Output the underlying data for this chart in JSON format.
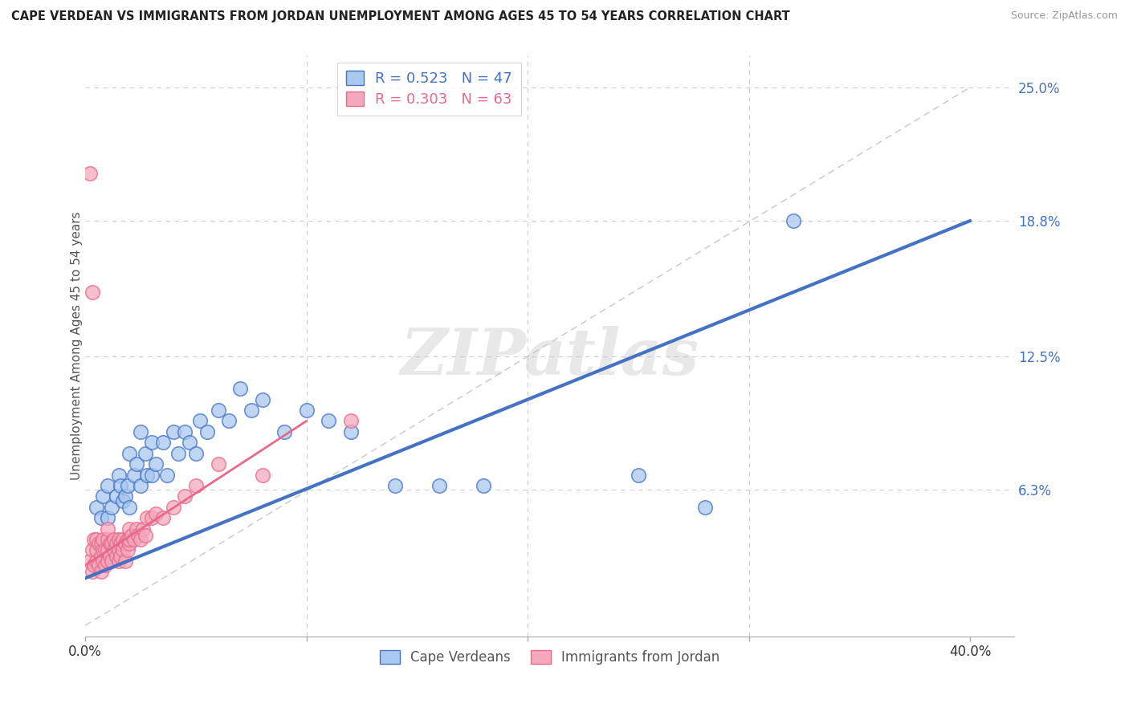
{
  "title": "CAPE VERDEAN VS IMMIGRANTS FROM JORDAN UNEMPLOYMENT AMONG AGES 45 TO 54 YEARS CORRELATION CHART",
  "source": "Source: ZipAtlas.com",
  "ylabel": "Unemployment Among Ages 45 to 54 years",
  "xlim": [
    0.0,
    0.42
  ],
  "ylim": [
    -0.005,
    0.265
  ],
  "ytick_labels_right": [
    "25.0%",
    "18.8%",
    "12.5%",
    "6.3%"
  ],
  "ytick_values_right": [
    0.25,
    0.188,
    0.125,
    0.063
  ],
  "blue_R": "0.523",
  "blue_N": "47",
  "pink_R": "0.303",
  "pink_N": "63",
  "legend_label_blue": "Cape Verdeans",
  "legend_label_pink": "Immigrants from Jordan",
  "watermark": "ZIPatlas",
  "blue_scatter_x": [
    0.005,
    0.007,
    0.008,
    0.01,
    0.01,
    0.012,
    0.014,
    0.015,
    0.016,
    0.017,
    0.018,
    0.019,
    0.02,
    0.02,
    0.022,
    0.023,
    0.025,
    0.025,
    0.027,
    0.028,
    0.03,
    0.03,
    0.032,
    0.035,
    0.037,
    0.04,
    0.042,
    0.045,
    0.047,
    0.05,
    0.052,
    0.055,
    0.06,
    0.065,
    0.07,
    0.075,
    0.08,
    0.09,
    0.1,
    0.11,
    0.12,
    0.14,
    0.16,
    0.18,
    0.25,
    0.28,
    0.32
  ],
  "blue_scatter_y": [
    0.055,
    0.05,
    0.06,
    0.05,
    0.065,
    0.055,
    0.06,
    0.07,
    0.065,
    0.058,
    0.06,
    0.065,
    0.055,
    0.08,
    0.07,
    0.075,
    0.065,
    0.09,
    0.08,
    0.07,
    0.07,
    0.085,
    0.075,
    0.085,
    0.07,
    0.09,
    0.08,
    0.09,
    0.085,
    0.08,
    0.095,
    0.09,
    0.1,
    0.095,
    0.11,
    0.1,
    0.105,
    0.09,
    0.1,
    0.095,
    0.09,
    0.065,
    0.065,
    0.065,
    0.07,
    0.055,
    0.188
  ],
  "pink_scatter_x": [
    0.002,
    0.003,
    0.003,
    0.004,
    0.004,
    0.005,
    0.005,
    0.005,
    0.006,
    0.006,
    0.007,
    0.007,
    0.007,
    0.008,
    0.008,
    0.008,
    0.009,
    0.009,
    0.01,
    0.01,
    0.01,
    0.01,
    0.011,
    0.011,
    0.012,
    0.012,
    0.013,
    0.013,
    0.014,
    0.014,
    0.015,
    0.015,
    0.015,
    0.016,
    0.016,
    0.017,
    0.017,
    0.018,
    0.018,
    0.019,
    0.019,
    0.02,
    0.02,
    0.02,
    0.021,
    0.022,
    0.023,
    0.024,
    0.025,
    0.026,
    0.027,
    0.028,
    0.03,
    0.032,
    0.035,
    0.04,
    0.045,
    0.05,
    0.06,
    0.08,
    0.002,
    0.003,
    0.12
  ],
  "pink_scatter_y": [
    0.03,
    0.025,
    0.035,
    0.028,
    0.04,
    0.03,
    0.035,
    0.04,
    0.028,
    0.038,
    0.025,
    0.032,
    0.038,
    0.03,
    0.035,
    0.04,
    0.028,
    0.035,
    0.03,
    0.035,
    0.04,
    0.045,
    0.032,
    0.038,
    0.03,
    0.038,
    0.035,
    0.04,
    0.032,
    0.038,
    0.03,
    0.035,
    0.04,
    0.032,
    0.038,
    0.035,
    0.04,
    0.03,
    0.038,
    0.035,
    0.04,
    0.038,
    0.04,
    0.045,
    0.042,
    0.04,
    0.045,
    0.042,
    0.04,
    0.045,
    0.042,
    0.05,
    0.05,
    0.052,
    0.05,
    0.055,
    0.06,
    0.065,
    0.075,
    0.07,
    0.21,
    0.155,
    0.095
  ],
  "blue_line_color": "#4472C4",
  "pink_line_color": "#E8698A",
  "scatter_blue_facecolor": "#A8C8F0",
  "scatter_blue_edgecolor": "#4472C4",
  "scatter_pink_facecolor": "#F5A8BC",
  "scatter_pink_edgecolor": "#E8698A",
  "grid_color": "#CCCCCC",
  "ref_line_color": "#C8C8C8",
  "background_color": "#FFFFFF",
  "blue_line_x0": 0.0,
  "blue_line_y0": 0.022,
  "blue_line_x1": 0.4,
  "blue_line_y1": 0.188,
  "pink_line_x0": 0.0,
  "pink_line_y0": 0.028,
  "pink_line_x1": 0.1,
  "pink_line_y1": 0.095
}
